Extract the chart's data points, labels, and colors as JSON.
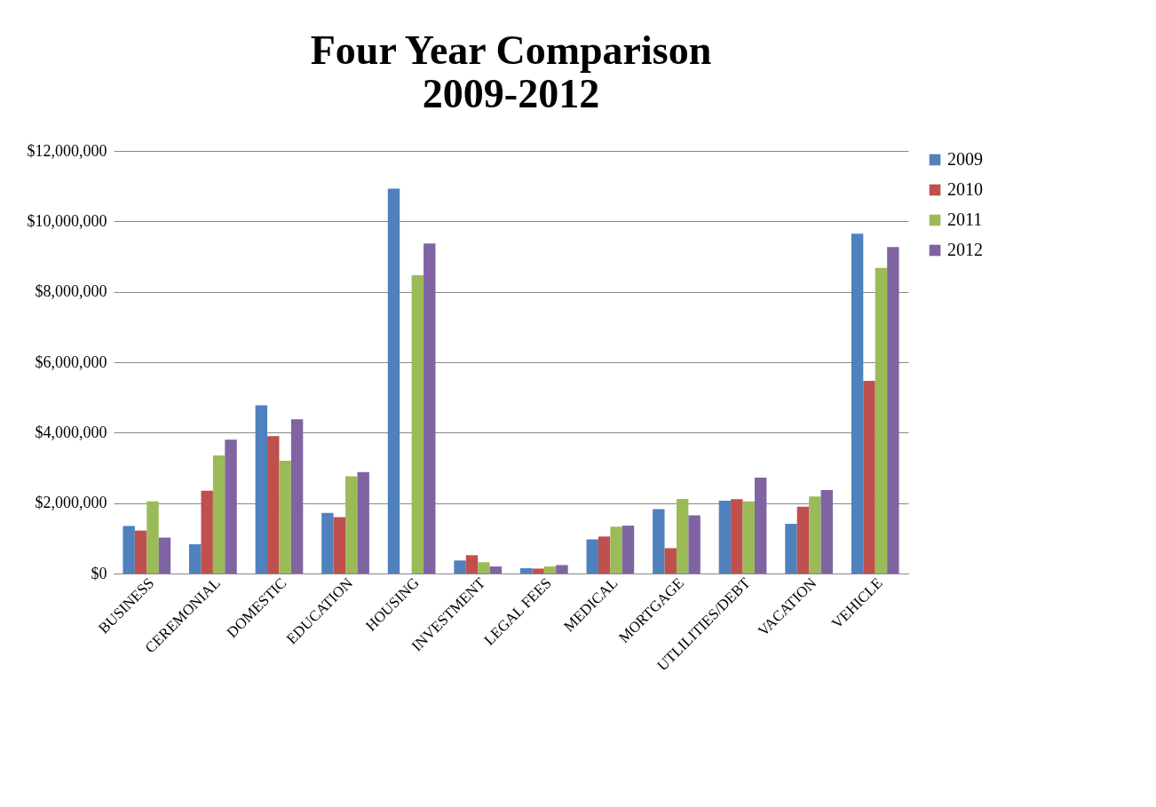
{
  "chart_data": {
    "type": "bar",
    "title": "Four Year Comparison",
    "subtitle": "2009-2012",
    "categories": [
      "BUSINESS",
      "CEREMONIAL",
      "DOMESTIC",
      "EDUCATION",
      "HOUSING",
      "INVESTMENT",
      "LEGAL FEES",
      "MEDICAL",
      "MORTGAGE",
      "UTLILITIES/DEBT",
      "VACATION",
      "VEHICLE"
    ],
    "series": [
      {
        "name": "2009",
        "color": "#4f81bd",
        "values": [
          1350000,
          830000,
          4780000,
          1720000,
          10930000,
          370000,
          150000,
          970000,
          1830000,
          2070000,
          1410000,
          9650000
        ]
      },
      {
        "name": "2010",
        "color": "#c0504d",
        "values": [
          1220000,
          2350000,
          3900000,
          1600000,
          null,
          520000,
          140000,
          1050000,
          720000,
          2110000,
          1900000,
          5470000
        ]
      },
      {
        "name": "2011",
        "color": "#9bbb59",
        "values": [
          2050000,
          3350000,
          3200000,
          2760000,
          8470000,
          320000,
          200000,
          1330000,
          2120000,
          2050000,
          2190000,
          8680000
        ]
      },
      {
        "name": "2012",
        "color": "#8064a2",
        "values": [
          1020000,
          3800000,
          4380000,
          2880000,
          9370000,
          200000,
          240000,
          1360000,
          1650000,
          2720000,
          2370000,
          9270000
        ]
      }
    ],
    "ylim": [
      0,
      12000000
    ],
    "yticks": [
      {
        "value": 0,
        "label": "$0"
      },
      {
        "value": 2000000,
        "label": "$2,000,000"
      },
      {
        "value": 4000000,
        "label": "$4,000,000"
      },
      {
        "value": 6000000,
        "label": "$6,000,000"
      },
      {
        "value": 8000000,
        "label": "$8,000,000"
      },
      {
        "value": 10000000,
        "label": "$10,000,000"
      },
      {
        "value": 12000000,
        "label": "$12,000,000"
      }
    ],
    "grid": "y",
    "legend": "right"
  }
}
